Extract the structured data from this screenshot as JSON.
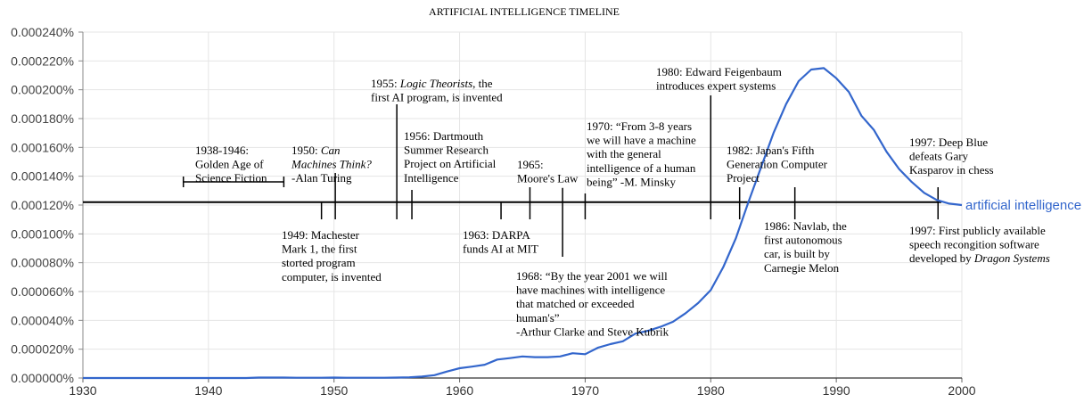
{
  "chart_data": {
    "type": "line",
    "title": "ARTIFICIAL INTELLIGENCE TIMELINE",
    "xlabel": "",
    "ylabel": "",
    "xlim": [
      1930,
      2000
    ],
    "ylim": [
      0,
      0.00024
    ],
    "x_ticks": [
      1930,
      1940,
      1950,
      1960,
      1970,
      1980,
      1990,
      2000
    ],
    "x_tick_labels": [
      "1930",
      "1940",
      "1950",
      "1960",
      "1970",
      "1980",
      "1990",
      "2000"
    ],
    "y_ticks": [
      0,
      2e-05,
      4e-05,
      6e-05,
      8e-05,
      0.0001,
      0.00012,
      0.00014,
      0.00016,
      0.00018,
      0.0002,
      0.00022,
      0.00024
    ],
    "y_tick_labels": [
      "0.000000%",
      "0.000020%",
      "0.000040%",
      "0.000060%",
      "0.000080%",
      "0.000100%",
      "0.000120%",
      "0.000140%",
      "0.000160%",
      "0.000180%",
      "0.000200%",
      "0.000220%",
      "0.000240%"
    ],
    "grid": true,
    "line_color": "#3366cc",
    "series": [
      {
        "name": "artificial intelligence",
        "x": [
          1930,
          1931,
          1932,
          1933,
          1934,
          1935,
          1936,
          1937,
          1938,
          1939,
          1940,
          1941,
          1942,
          1943,
          1944,
          1945,
          1946,
          1947,
          1948,
          1949,
          1950,
          1951,
          1952,
          1953,
          1954,
          1955,
          1956,
          1957,
          1958,
          1959,
          1960,
          1961,
          1962,
          1963,
          1964,
          1965,
          1966,
          1967,
          1968,
          1969,
          1970,
          1971,
          1972,
          1973,
          1974,
          1975,
          1976,
          1977,
          1978,
          1979,
          1980,
          1981,
          1982,
          1983,
          1984,
          1985,
          1986,
          1987,
          1988,
          1989,
          1990,
          1991,
          1992,
          1993,
          1994,
          1995,
          1996,
          1997,
          1998,
          1999,
          2000
        ],
        "y": [
          0,
          0,
          0,
          0,
          0,
          0,
          0,
          0,
          0,
          0,
          0,
          0,
          0,
          0,
          3e-07,
          3e-07,
          3e-07,
          2e-07,
          2e-07,
          2e-07,
          3e-07,
          2e-07,
          2e-07,
          2e-07,
          2e-07,
          3e-07,
          5e-07,
          1e-06,
          2e-06,
          4.5e-06,
          6.8e-06,
          7.9e-06,
          9.2e-06,
          1.28e-05,
          1.38e-05,
          1.5e-05,
          1.45e-05,
          1.45e-05,
          1.5e-05,
          1.72e-05,
          1.65e-05,
          2.1e-05,
          2.35e-05,
          2.55e-05,
          3.08e-05,
          3.28e-05,
          3.55e-05,
          3.9e-05,
          4.5e-05,
          5.2e-05,
          6.1e-05,
          7.7e-05,
          9.7e-05,
          0.000122,
          0.000146,
          0.00017,
          0.00019,
          0.000206,
          0.000214,
          0.000215,
          0.000208,
          0.0001985,
          0.000182,
          0.000172,
          0.000157,
          0.000145,
          0.000136,
          0.0001285,
          0.0001235,
          0.000121,
          0.00012
        ]
      }
    ],
    "timeline": {
      "baseline_value": 0.000122,
      "span": {
        "start": 1938,
        "end": 1946
      },
      "events": [
        {
          "year": 1938,
          "tick": "none",
          "lines": [
            [
              "1938-1946:"
            ],
            [
              "Golden Age of"
            ],
            [
              "Science Fiction"
            ]
          ]
        },
        {
          "year": 1949,
          "tick": "down",
          "lines": [
            [
              "1949: Machester"
            ],
            [
              "Mark 1, the first"
            ],
            [
              "storted program"
            ],
            [
              "computer, is invented"
            ]
          ]
        },
        {
          "year": 1950,
          "tick": "up",
          "lines": [
            [
              "1950: ",
              {
                "i": "Can"
              }
            ],
            [
              {
                "i": "Machines Think?"
              }
            ],
            [
              "-Alan Turing"
            ]
          ]
        },
        {
          "year": 1955,
          "tick": "up",
          "lines": [
            [
              "1955: ",
              {
                "i": "Logic Theorists"
              },
              ", the"
            ],
            [
              "first AI program, is invented"
            ]
          ]
        },
        {
          "year": 1956,
          "tick": "up",
          "lines": [
            [
              "1956: Dartmouth"
            ],
            [
              "Summer Research"
            ],
            [
              "Project on Artificial"
            ],
            [
              "Intelligence"
            ]
          ]
        },
        {
          "year": 1963,
          "tick": "down",
          "lines": [
            [
              "1963: DARPA"
            ],
            [
              "funds AI at MIT"
            ]
          ]
        },
        {
          "year": 1965,
          "tick": "up",
          "lines": [
            [
              "1965:"
            ],
            [
              "Moore's Law"
            ]
          ]
        },
        {
          "year": 1968,
          "tick": "down",
          "lines": [
            [
              "1968: “By the year 2001 we will"
            ],
            [
              "have machines with intelligence"
            ],
            [
              "that matched or exceeded"
            ],
            [
              "human's”"
            ],
            [
              "-Arthur Clarke and Steve Kubrik"
            ]
          ]
        },
        {
          "year": 1970,
          "tick": "up",
          "lines": [
            [
              "1970: “From 3-8 years"
            ],
            [
              "we will have a machine"
            ],
            [
              "with the general"
            ],
            [
              "intelligence of a human"
            ],
            [
              "being” -M. Minsky"
            ]
          ]
        },
        {
          "year": 1980,
          "tick": "up",
          "lines": [
            [
              "1980: Edward Feigenbaum"
            ],
            [
              "introduces expert systems"
            ]
          ]
        },
        {
          "year": 1982,
          "tick": "up",
          "lines": [
            [
              "1982: Japan's Fifth"
            ],
            [
              "Generation Computer"
            ],
            [
              "Project"
            ]
          ]
        },
        {
          "year": 1986,
          "tick": "both",
          "lines": [
            [
              "1986: Navlab, the"
            ],
            [
              "first autonomous"
            ],
            [
              "car, is built by"
            ],
            [
              "Carnegie Melon"
            ]
          ]
        },
        {
          "year": 1997,
          "tick": "up",
          "lines": [
            [
              "1997: Deep Blue"
            ],
            [
              "defeats Gary"
            ],
            [
              "Kasparov in chess"
            ]
          ]
        },
        {
          "year": 1997,
          "tick": "down",
          "lines": [
            [
              "1997: First publicly available"
            ],
            [
              "speech recongition software"
            ],
            [
              "developed by ",
              {
                "i": "Dragon Systems"
              }
            ]
          ]
        }
      ]
    }
  }
}
